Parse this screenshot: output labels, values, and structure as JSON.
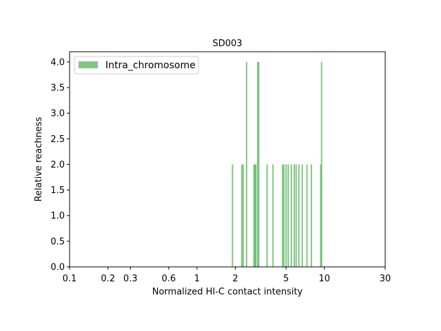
{
  "chart_data": {
    "type": "bar",
    "title": "SD003",
    "xlabel": "Normalized HI-C contact intensity",
    "ylabel": "Relative reachness",
    "x_scale": "log",
    "xlim": [
      0.1,
      30
    ],
    "ylim": [
      0,
      4.2
    ],
    "x_ticks": [
      0.1,
      0.2,
      0.3,
      0.6,
      1,
      2,
      5,
      10,
      30
    ],
    "x_tick_labels": [
      "0.1",
      "0.2",
      "0.3",
      "0.6",
      "1",
      "2",
      "5",
      "10",
      "30"
    ],
    "y_ticks": [
      0,
      0.5,
      1,
      1.5,
      2,
      2.5,
      3,
      3.5,
      4
    ],
    "y_tick_labels": [
      "0.0",
      "0.5",
      "1.0",
      "1.5",
      "2.0",
      "2.5",
      "3.0",
      "3.5",
      "4.0"
    ],
    "grid": false,
    "legend_position": "top-left",
    "series": [
      {
        "name": "Intra_chromosome",
        "color": "#4CAF50",
        "x": [
          1.9,
          2.25,
          2.3,
          2.45,
          2.8,
          2.85,
          2.9,
          3.0,
          3.05,
          3.55,
          3.95,
          4.7,
          4.8,
          5.0,
          5.2,
          5.5,
          5.8,
          6.0,
          6.3,
          6.7,
          7.3,
          7.9,
          9.35,
          9.5
        ],
        "values": [
          2,
          2,
          2,
          4,
          2,
          2,
          2,
          4,
          4,
          2,
          2,
          2,
          2,
          2,
          2,
          2,
          2,
          2,
          2,
          2,
          2,
          2,
          2,
          4
        ]
      }
    ]
  }
}
